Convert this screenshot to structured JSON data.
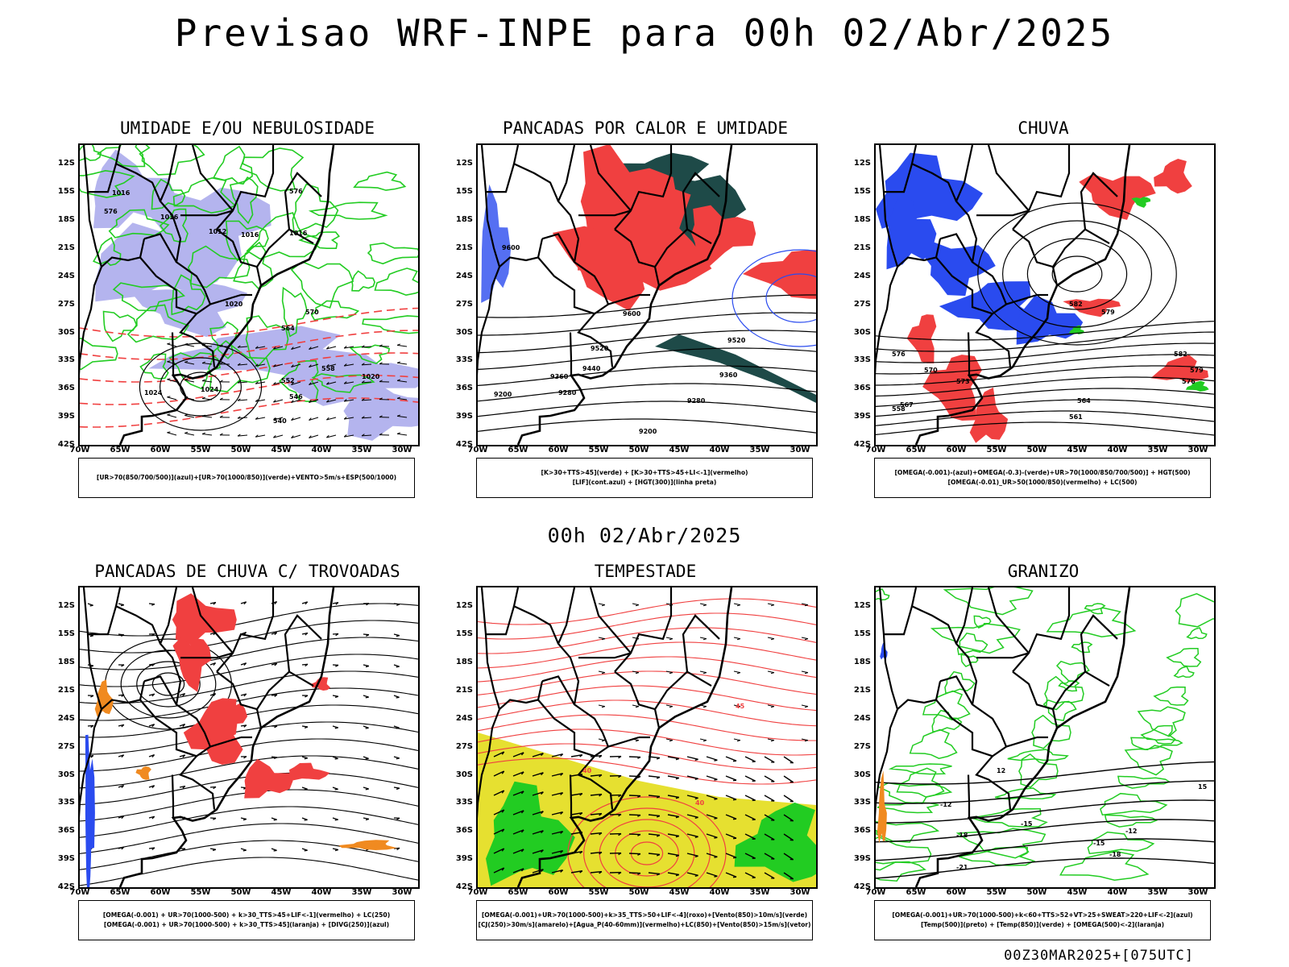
{
  "header": {
    "title": "Previsao WRF-INPE  para 00h 02/Abr/2025",
    "mid_title": "00h 02/Abr/2025",
    "footer": "00Z30MAR2025+[075UTC]"
  },
  "axes": {
    "lat_labels": [
      "12S",
      "15S",
      "18S",
      "21S",
      "24S",
      "27S",
      "30S",
      "33S",
      "36S",
      "39S",
      "42S"
    ],
    "lon_labels": [
      "70W",
      "65W",
      "60W",
      "55W",
      "50W",
      "45W",
      "40W",
      "35W",
      "30W"
    ]
  },
  "colors": {
    "blue": "#2a4bef",
    "green": "#22cc22",
    "red": "#f04040",
    "darkgreen": "#1e4a48",
    "lavender": "#b4b4ee",
    "yellow": "#e6e030",
    "orange": "#f08a20",
    "black": "#000000"
  },
  "panels": [
    {
      "title": "UMIDADE E/OU NEBULOSIDADE",
      "legend": [
        "[UR>70(850/700/500)](azul)+[UR>70(1000/850)](verde)+VENTO>5m/s+ESP(500/1000)"
      ],
      "contour_labels": [
        "1012",
        "1016",
        "1016",
        "1016",
        "1016",
        "1020",
        "1020",
        "1024",
        "1024",
        "576",
        "576",
        "570",
        "564",
        "558",
        "552",
        "546",
        "540"
      ]
    },
    {
      "title": "PANCADAS POR CALOR E UMIDADE",
      "legend": [
        "[K>30+TTS>45](verde) + [K>30+TTS>45+LI<-1](vermelho)",
        "[LIF](cont.azul) + [HGT(300)](linha preta)"
      ],
      "contour_labels": [
        "9600",
        "9520",
        "9440",
        "9360",
        "9280",
        "9200",
        "9600",
        "9520",
        "9360",
        "9280",
        "9200"
      ]
    },
    {
      "title": "CHUVA",
      "legend": [
        "[OMEGA(-0.001)-(azul)+OMEGA(-0.3)-(verde)+UR>70(1000/850/700/500)] + HGT(500)",
        "[OMEGA(-0.01)_UR>50(1000/850)(vermelho) + LC(500)"
      ],
      "contour_labels": [
        "582",
        "579",
        "576",
        "573",
        "570",
        "567",
        "564",
        "561",
        "558",
        "582",
        "579",
        "576"
      ]
    },
    {
      "title": "PANCADAS DE CHUVA C/ TROVOADAS",
      "legend": [
        "[OMEGA(-0.001) + UR>70(1000-500) + k>30_TTS>45+LIF<-1](vermelho) + LC(250)",
        "[OMEGA(-0.001) + UR>70(1000-500) + k>30_TTS>45](laranja) + [DIVG(250)](azul)"
      ],
      "contour_labels": []
    },
    {
      "title": "TEMPESTADE",
      "legend": [
        "[OMEGA(-0.001)+UR>70(1000-500)+k>35_TTS>50+LIF<-4](roxo)+[Vento(850)>10m/s](verde)",
        "[CJ(250)>30m/s](amarelo)+[Agua_P(40-60mm)](vermelho)+LC(850)+[Vento(850)>15m/s](vetor)"
      ],
      "contour_labels": [
        "40",
        "45",
        "40"
      ]
    },
    {
      "title": "GRANIZO",
      "legend": [
        "[OMEGA(-0.001)+UR>70(1000-500)+k<60+TTS>52+VT>25+SWEAT>220+LIF<-2](azul)",
        "[Temp(500)](preto) + [Temp(850)](verde) + [OMEGA(500)<-2](laranja)"
      ],
      "contour_labels": [
        "-12",
        "-15",
        "-18",
        "-21",
        "-12",
        "-15",
        "-18",
        "12",
        "15"
      ]
    }
  ]
}
